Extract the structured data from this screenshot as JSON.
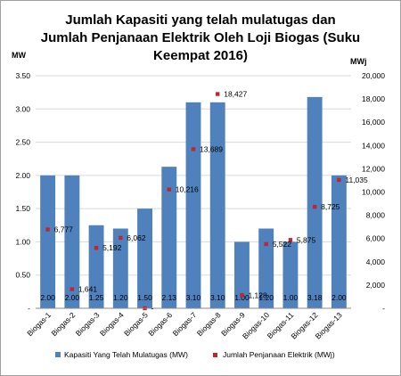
{
  "chart_data": {
    "type": "bar",
    "title_lines": [
      "Jumlah Kapasiti yang telah mulatugas dan",
      "Jumlah Penjanaan Elektrik Oleh Loji Biogas (Suku",
      "Keempat 2016)"
    ],
    "left_unit": "MW",
    "right_unit": "MWj",
    "categories": [
      "Biogas-1",
      "Biogas-2",
      "Biogas-3",
      "Biogas-4",
      "Biogas-5",
      "Biogas-6",
      "Biogas-7",
      "Biogas-8",
      "Biogas-9",
      "Biogas-10",
      "Biogas-11",
      "Biogas-12",
      "Biogas-13"
    ],
    "left_ticks": [
      "3.50",
      "3.00",
      "2.50",
      "2.00",
      "1.50",
      "1.00",
      "0.50",
      "-"
    ],
    "right_ticks": [
      "20,000",
      "18,000",
      "16,000",
      "14,000",
      "12,000",
      "10,000",
      "8,000",
      "6,000",
      "4,000",
      "2,000",
      "-"
    ],
    "ylim_left": [
      0,
      3.5
    ],
    "ylim_right": [
      0,
      20000
    ],
    "series": [
      {
        "name": "Kapasiti Yang Telah Mulatugas (MW)",
        "kind": "bar",
        "axis": "left",
        "color": "#4f81bd",
        "values": [
          2.0,
          2.0,
          1.25,
          1.2,
          1.5,
          2.13,
          3.1,
          3.1,
          1.0,
          1.2,
          1.0,
          3.18,
          2.0
        ],
        "labels": [
          "2.00",
          "2.00",
          "1.25",
          "1.20",
          "1.50",
          "2.13",
          "3.10",
          "3.10",
          "1.00",
          "1.20",
          "1.00",
          "3.18",
          "2.00"
        ]
      },
      {
        "name": "Jumlah Penjanaan Elektrik (MWj)",
        "kind": "marker",
        "axis": "right",
        "color": "#c0262d",
        "values": [
          6777,
          1641,
          5192,
          6062,
          0,
          10216,
          13689,
          18427,
          1128,
          5522,
          5875,
          8725,
          11035
        ],
        "labels": [
          "6,777",
          "1,641",
          "5,192",
          "6,062",
          "-",
          "10,216",
          "13,689",
          "18,427",
          "1,128",
          "5,522",
          "5,875",
          "8,725",
          "11,035"
        ]
      }
    ]
  }
}
